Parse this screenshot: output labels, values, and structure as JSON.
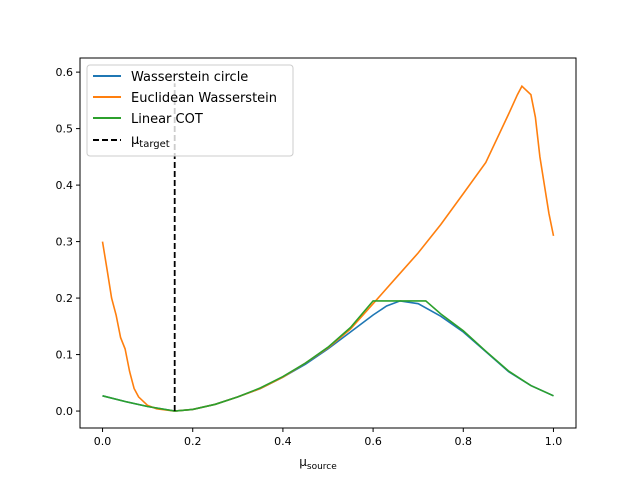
{
  "chart_data": {
    "type": "line",
    "xlabel": "μ",
    "xlabel_sub": "source",
    "ylabel": "",
    "xlim": [
      -0.05,
      1.05
    ],
    "ylim": [
      -0.03,
      0.625
    ],
    "xticks": [
      "0.0",
      "0.2",
      "0.4",
      "0.6",
      "0.8",
      "1.0"
    ],
    "xtick_values": [
      0,
      0.2,
      0.4,
      0.6,
      0.8,
      1.0
    ],
    "yticks": [
      "0.0",
      "0.1",
      "0.2",
      "0.3",
      "0.4",
      "0.5",
      "0.6"
    ],
    "ytick_values": [
      0,
      0.1,
      0.2,
      0.3,
      0.4,
      0.5,
      0.6
    ],
    "grid": false,
    "legend_position": "top-left",
    "vline": {
      "x": 0.16,
      "name": "μ",
      "name_sub": "target",
      "color": "#000000"
    },
    "series": [
      {
        "name": "Wasserstein circle",
        "color": "#1f77b4",
        "x": [
          0,
          0.05,
          0.1,
          0.16,
          0.2,
          0.25,
          0.3,
          0.35,
          0.4,
          0.45,
          0.5,
          0.55,
          0.6,
          0.63,
          0.66,
          0.7,
          0.75,
          0.8,
          0.85,
          0.9,
          0.95,
          1.0
        ],
        "y": [
          0.027,
          0.017,
          0.008,
          0,
          0.003,
          0.012,
          0.025,
          0.04,
          0.06,
          0.083,
          0.11,
          0.14,
          0.17,
          0.186,
          0.195,
          0.19,
          0.168,
          0.14,
          0.105,
          0.07,
          0.045,
          0.027
        ]
      },
      {
        "name": "Euclidean Wasserstein",
        "color": "#ff7f0e",
        "x": [
          0,
          0.01,
          0.02,
          0.03,
          0.04,
          0.05,
          0.06,
          0.07,
          0.08,
          0.1,
          0.12,
          0.16,
          0.2,
          0.25,
          0.3,
          0.35,
          0.4,
          0.45,
          0.5,
          0.55,
          0.6,
          0.65,
          0.7,
          0.75,
          0.8,
          0.85,
          0.9,
          0.92,
          0.93,
          0.95,
          0.96,
          0.97,
          0.98,
          0.99,
          1.0
        ],
        "y": [
          0.3,
          0.25,
          0.2,
          0.17,
          0.13,
          0.11,
          0.07,
          0.04,
          0.025,
          0.01,
          0.004,
          0,
          0.003,
          0.012,
          0.025,
          0.04,
          0.06,
          0.085,
          0.112,
          0.145,
          0.19,
          0.235,
          0.28,
          0.33,
          0.385,
          0.44,
          0.525,
          0.56,
          0.575,
          0.56,
          0.52,
          0.45,
          0.4,
          0.35,
          0.31
        ]
      },
      {
        "name": "Linear COT",
        "color": "#2ca02c",
        "x": [
          0,
          0.05,
          0.1,
          0.16,
          0.2,
          0.25,
          0.3,
          0.35,
          0.4,
          0.45,
          0.5,
          0.55,
          0.6,
          0.717,
          0.75,
          0.8,
          0.85,
          0.9,
          0.95,
          1.0
        ],
        "y": [
          0.027,
          0.017,
          0.008,
          0,
          0.003,
          0.012,
          0.025,
          0.041,
          0.061,
          0.085,
          0.113,
          0.148,
          0.195,
          0.195,
          0.172,
          0.142,
          0.106,
          0.071,
          0.045,
          0.027
        ]
      }
    ]
  }
}
